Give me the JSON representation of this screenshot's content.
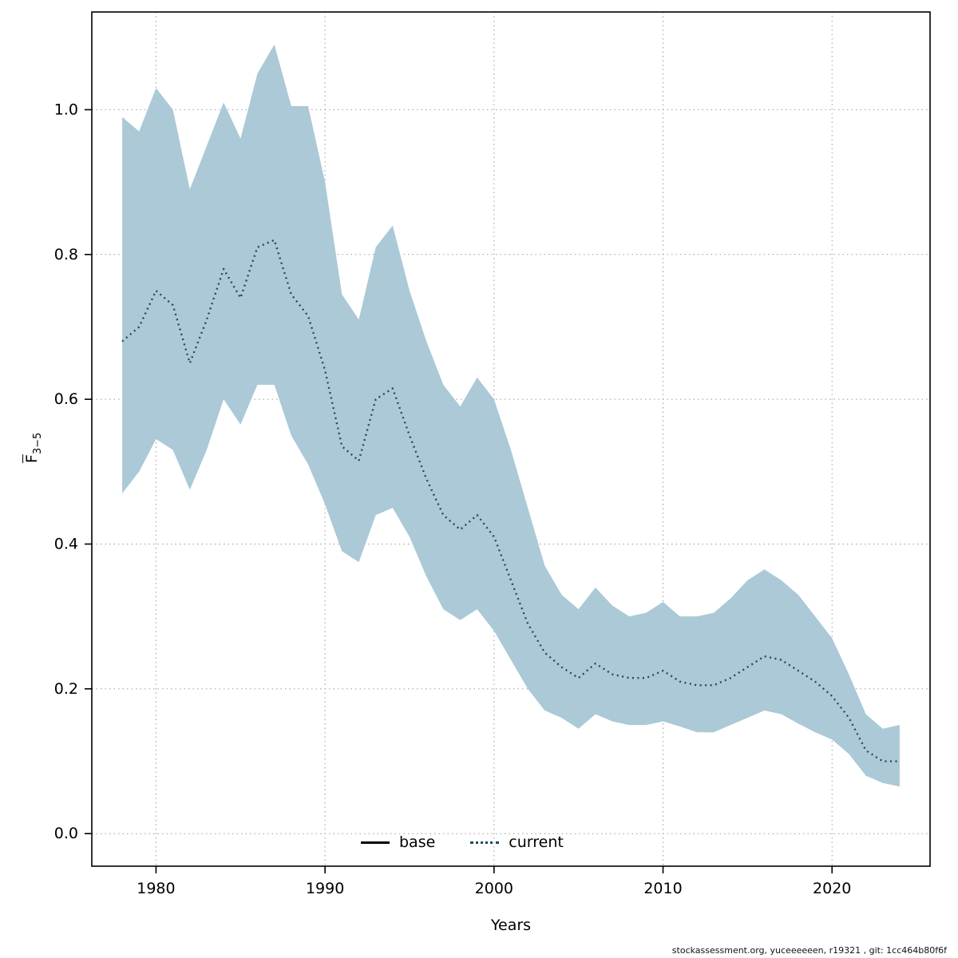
{
  "footer": {
    "text": "stockassessment.org, yuceeeeeen, r19321 , git: 1cc464b80f6f"
  },
  "chart_data": {
    "type": "line",
    "title": "",
    "xlabel": "Years",
    "ylabel_main": "F",
    "ylabel_sub": "3−5",
    "grid": "dotted",
    "legend_position": "bottom-center-inside",
    "xlim": [
      1976.2,
      2025.8
    ],
    "ylim": [
      -0.045,
      1.135
    ],
    "xticks": [
      1980,
      1990,
      2000,
      2010,
      2020
    ],
    "ytick_labels": [
      "0.0",
      "0.2",
      "0.4",
      "0.6",
      "0.8",
      "1.0"
    ],
    "x": [
      1978,
      1979,
      1980,
      1981,
      1982,
      1983,
      1984,
      1985,
      1986,
      1987,
      1988,
      1989,
      1990,
      1991,
      1992,
      1993,
      1994,
      1995,
      1996,
      1997,
      1998,
      1999,
      2000,
      2001,
      2002,
      2003,
      2004,
      2005,
      2006,
      2007,
      2008,
      2009,
      2010,
      2011,
      2012,
      2013,
      2014,
      2015,
      2016,
      2017,
      2018,
      2019,
      2020,
      2021,
      2022,
      2023,
      2024
    ],
    "series": [
      {
        "name": "current",
        "style": "dotted",
        "color": "#1a4c63",
        "values": [
          0.68,
          0.7,
          0.75,
          0.73,
          0.65,
          0.71,
          0.78,
          0.74,
          0.81,
          0.82,
          0.745,
          0.715,
          0.64,
          0.535,
          0.515,
          0.6,
          0.615,
          0.55,
          0.49,
          0.44,
          0.42,
          0.44,
          0.41,
          0.35,
          0.29,
          0.25,
          0.23,
          0.215,
          0.235,
          0.22,
          0.215,
          0.215,
          0.225,
          0.21,
          0.205,
          0.205,
          0.215,
          0.23,
          0.245,
          0.24,
          0.225,
          0.21,
          0.19,
          0.16,
          0.115,
          0.1,
          0.1
        ]
      }
    ],
    "band": {
      "name": "confidence-band",
      "color": "#abc9d7",
      "upper": [
        0.99,
        0.97,
        1.03,
        1.0,
        0.89,
        0.95,
        1.01,
        0.96,
        1.05,
        1.09,
        1.005,
        1.005,
        0.9,
        0.745,
        0.71,
        0.81,
        0.84,
        0.75,
        0.68,
        0.62,
        0.59,
        0.63,
        0.6,
        0.53,
        0.45,
        0.37,
        0.33,
        0.31,
        0.34,
        0.315,
        0.3,
        0.305,
        0.32,
        0.3,
        0.3,
        0.305,
        0.325,
        0.35,
        0.365,
        0.35,
        0.33,
        0.3,
        0.27,
        0.22,
        0.165,
        0.145,
        0.15
      ],
      "lower": [
        0.47,
        0.5,
        0.545,
        0.53,
        0.475,
        0.53,
        0.6,
        0.565,
        0.62,
        0.62,
        0.55,
        0.51,
        0.455,
        0.39,
        0.375,
        0.44,
        0.45,
        0.41,
        0.355,
        0.31,
        0.295,
        0.31,
        0.28,
        0.24,
        0.2,
        0.17,
        0.16,
        0.145,
        0.165,
        0.155,
        0.15,
        0.15,
        0.155,
        0.148,
        0.14,
        0.14,
        0.15,
        0.16,
        0.17,
        0.165,
        0.152,
        0.14,
        0.13,
        0.11,
        0.08,
        0.07,
        0.065
      ]
    },
    "legend": {
      "items": [
        {
          "label": "base",
          "line": "solid",
          "color": "#000000"
        },
        {
          "label": "current",
          "line": "dotted",
          "color": "#1a4c63"
        }
      ]
    }
  }
}
